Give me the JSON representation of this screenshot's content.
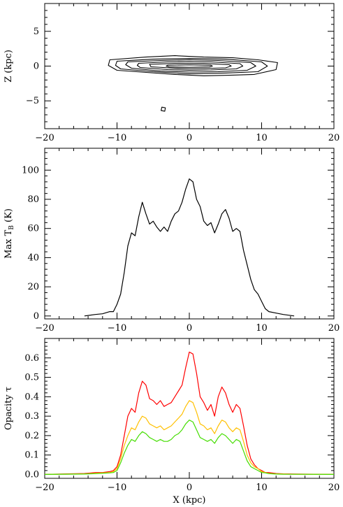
{
  "chart_data": [
    {
      "type": "contour",
      "ylabel": "Z (kpc)",
      "xlim": [
        -20,
        20
      ],
      "ylim": [
        -9,
        9
      ],
      "x_ticks": [
        -20,
        -10,
        0,
        10,
        20
      ],
      "y_ticks": [
        -5,
        0,
        5
      ],
      "contours": [
        {
          "level": 1,
          "points": [
            [
              -11.0,
              0.9
            ],
            [
              -6.0,
              1.3
            ],
            [
              -2.0,
              1.5
            ],
            [
              2.0,
              1.3
            ],
            [
              6.0,
              1.2
            ],
            [
              9.5,
              0.9
            ],
            [
              12.2,
              0.5
            ],
            [
              12.0,
              -0.5
            ],
            [
              9.0,
              -1.2
            ],
            [
              6.0,
              -1.3
            ],
            [
              2.0,
              -1.4
            ],
            [
              -2.0,
              -1.2
            ],
            [
              -6.0,
              -0.9
            ],
            [
              -10.0,
              -0.6
            ],
            [
              -11.2,
              0.1
            ]
          ]
        },
        {
          "level": 2,
          "points": [
            [
              -10.0,
              0.7
            ],
            [
              -5.0,
              1.0
            ],
            [
              0.0,
              1.1
            ],
            [
              5.0,
              1.0
            ],
            [
              10.0,
              0.6
            ],
            [
              10.8,
              0.0
            ],
            [
              9.5,
              -0.8
            ],
            [
              5.0,
              -1.0
            ],
            [
              0.0,
              -1.1
            ],
            [
              -5.0,
              -0.8
            ],
            [
              -9.5,
              -0.4
            ],
            [
              -10.2,
              0.1
            ]
          ]
        },
        {
          "level": 3,
          "points": [
            [
              -8.5,
              0.6
            ],
            [
              -4.0,
              0.8
            ],
            [
              0.0,
              0.9
            ],
            [
              4.0,
              0.8
            ],
            [
              8.5,
              0.5
            ],
            [
              9.2,
              0.0
            ],
            [
              8.0,
              -0.6
            ],
            [
              4.0,
              -0.8
            ],
            [
              0.0,
              -0.85
            ],
            [
              -4.0,
              -0.7
            ],
            [
              -8.0,
              -0.3
            ],
            [
              -8.8,
              0.2
            ]
          ]
        },
        {
          "level": 4,
          "points": [
            [
              -7.0,
              0.4
            ],
            [
              -3.0,
              0.6
            ],
            [
              0.0,
              0.65
            ],
            [
              3.0,
              0.6
            ],
            [
              7.0,
              0.35
            ],
            [
              7.4,
              0.0
            ],
            [
              6.5,
              -0.4
            ],
            [
              3.0,
              -0.55
            ],
            [
              0.0,
              -0.6
            ],
            [
              -3.0,
              -0.5
            ],
            [
              -6.8,
              -0.2
            ],
            [
              -7.2,
              0.1
            ]
          ]
        },
        {
          "level": 5,
          "points": [
            [
              -5.5,
              0.25
            ],
            [
              -2.0,
              0.38
            ],
            [
              0.0,
              0.4
            ],
            [
              2.0,
              0.38
            ],
            [
              5.5,
              0.2
            ],
            [
              5.8,
              0.0
            ],
            [
              5.0,
              -0.25
            ],
            [
              2.0,
              -0.35
            ],
            [
              0.0,
              -0.4
            ],
            [
              -2.0,
              -0.3
            ],
            [
              -5.3,
              -0.1
            ]
          ]
        },
        {
          "level": 6,
          "points": [
            [
              -3.0,
              0.12
            ],
            [
              0.0,
              0.18
            ],
            [
              3.0,
              0.12
            ],
            [
              3.2,
              0.0
            ],
            [
              2.8,
              -0.12
            ],
            [
              0.0,
              -0.18
            ],
            [
              -2.8,
              -0.12
            ],
            [
              -3.2,
              0.0
            ]
          ]
        },
        {
          "level": 7,
          "points": [
            [
              -3.8,
              -5.9
            ],
            [
              -3.3,
              -6.0
            ],
            [
              -3.4,
              -6.5
            ],
            [
              -3.9,
              -6.4
            ]
          ]
        }
      ]
    },
    {
      "type": "line",
      "ylabel": "Max T",
      "ylabel_sub": "B",
      "ylabel_suffix": " (K)",
      "xlim": [
        -20,
        20
      ],
      "ylim": [
        -2,
        115
      ],
      "x_ticks": [
        -20,
        -10,
        0,
        10,
        20
      ],
      "y_ticks": [
        0,
        20,
        40,
        60,
        80,
        100
      ],
      "series": [
        {
          "color": "#000000",
          "x": [
            -14.5,
            -13,
            -12,
            -11,
            -10.5,
            -10,
            -9.5,
            -9,
            -8.5,
            -8,
            -7.5,
            -7,
            -6.5,
            -6,
            -5.5,
            -5,
            -4.5,
            -4,
            -3.5,
            -3,
            -2.5,
            -2,
            -1.5,
            -1,
            -0.5,
            0,
            0.5,
            1,
            1.5,
            2,
            2.5,
            3,
            3.5,
            4,
            4.5,
            5,
            5.5,
            6,
            6.5,
            7,
            7.5,
            8,
            8.5,
            9,
            9.5,
            10,
            10.5,
            11,
            12,
            13,
            14.5
          ],
          "y": [
            0,
            1,
            1.5,
            3,
            3,
            8,
            15,
            30,
            48,
            57,
            55,
            68,
            78,
            70,
            63,
            65,
            61,
            58,
            61,
            58,
            65,
            70,
            72,
            78,
            87,
            94,
            92,
            80,
            75,
            65,
            62,
            64,
            57,
            63,
            70,
            73,
            67,
            58,
            60,
            58,
            45,
            35,
            25,
            18,
            15,
            10,
            5,
            3,
            2,
            1,
            0
          ]
        }
      ]
    },
    {
      "type": "line",
      "xlabel": "X (kpc)",
      "ylabel": "Opacity τ",
      "xlim": [
        -20,
        20
      ],
      "ylim": [
        -0.02,
        0.7
      ],
      "x_ticks": [
        -20,
        -10,
        0,
        10,
        20
      ],
      "y_ticks": [
        0.0,
        0.1,
        0.2,
        0.3,
        0.4,
        0.5,
        0.6
      ],
      "x": [
        -20,
        -14.5,
        -13,
        -12,
        -11,
        -10.5,
        -10,
        -9.5,
        -9,
        -8.5,
        -8,
        -7.5,
        -7,
        -6.5,
        -6,
        -5.5,
        -5,
        -4.5,
        -4,
        -3.5,
        -3,
        -2.5,
        -2,
        -1.5,
        -1,
        -0.5,
        0,
        0.5,
        1,
        1.5,
        2,
        2.5,
        3,
        3.5,
        4,
        4.5,
        5,
        5.5,
        6,
        6.5,
        7,
        7.5,
        8,
        8.5,
        9,
        9.5,
        10,
        10.5,
        11,
        12,
        13,
        14.5,
        20
      ],
      "series": [
        {
          "color": "#ff0000",
          "y": [
            0,
            0.005,
            0.01,
            0.01,
            0.015,
            0.02,
            0.04,
            0.1,
            0.2,
            0.3,
            0.34,
            0.32,
            0.42,
            0.48,
            0.46,
            0.39,
            0.38,
            0.36,
            0.38,
            0.35,
            0.36,
            0.37,
            0.4,
            0.43,
            0.46,
            0.55,
            0.63,
            0.62,
            0.52,
            0.4,
            0.37,
            0.33,
            0.36,
            0.3,
            0.4,
            0.45,
            0.42,
            0.36,
            0.32,
            0.36,
            0.34,
            0.25,
            0.15,
            0.08,
            0.05,
            0.03,
            0.02,
            0.01,
            0.01,
            0.005,
            0.003,
            0.002,
            0
          ]
        },
        {
          "color": "#ffc000",
          "y": [
            0,
            0.003,
            0.006,
            0.008,
            0.01,
            0.015,
            0.03,
            0.08,
            0.15,
            0.2,
            0.24,
            0.23,
            0.27,
            0.3,
            0.29,
            0.26,
            0.25,
            0.24,
            0.25,
            0.23,
            0.24,
            0.25,
            0.27,
            0.29,
            0.31,
            0.35,
            0.38,
            0.37,
            0.32,
            0.26,
            0.25,
            0.23,
            0.24,
            0.21,
            0.25,
            0.28,
            0.27,
            0.24,
            0.22,
            0.24,
            0.23,
            0.17,
            0.1,
            0.06,
            0.04,
            0.03,
            0.015,
            0.01,
            0.005,
            0.003,
            0.002,
            0.001,
            0
          ]
        },
        {
          "color": "#44dd00",
          "y": [
            0,
            0.002,
            0.004,
            0.006,
            0.008,
            0.01,
            0.02,
            0.06,
            0.11,
            0.15,
            0.18,
            0.17,
            0.2,
            0.22,
            0.21,
            0.19,
            0.18,
            0.17,
            0.18,
            0.17,
            0.17,
            0.18,
            0.2,
            0.21,
            0.23,
            0.26,
            0.28,
            0.27,
            0.23,
            0.19,
            0.18,
            0.17,
            0.18,
            0.16,
            0.19,
            0.21,
            0.2,
            0.18,
            0.16,
            0.18,
            0.17,
            0.12,
            0.07,
            0.04,
            0.03,
            0.02,
            0.01,
            0.008,
            0.004,
            0.002,
            0.001,
            0.001,
            0
          ]
        }
      ]
    }
  ]
}
